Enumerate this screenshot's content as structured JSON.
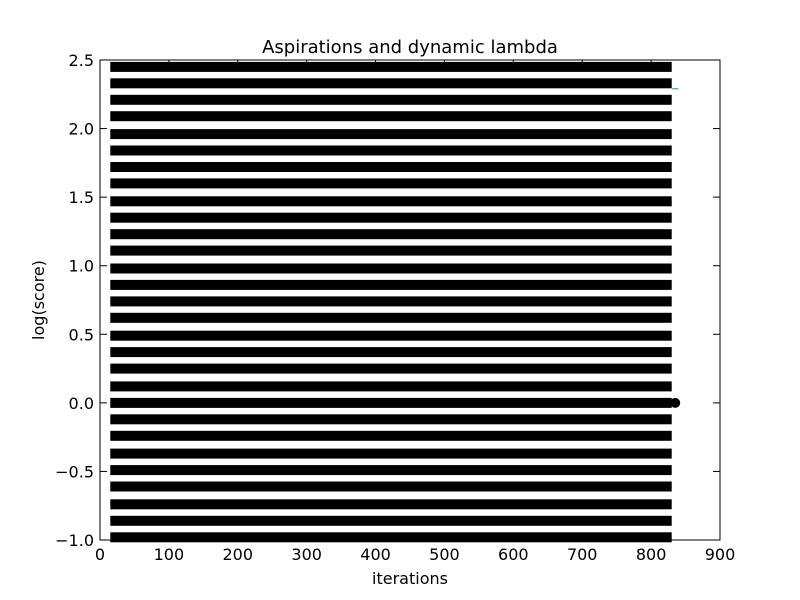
{
  "chart_data": {
    "type": "scatter",
    "title": "Aspirations and dynamic lambda",
    "xlabel": "iterations",
    "ylabel": "log(score)",
    "xlim": [
      0,
      900
    ],
    "ylim": [
      -1.0,
      2.5
    ],
    "xticks": [
      0,
      100,
      200,
      300,
      400,
      500,
      600,
      700,
      800,
      900
    ],
    "xtick_labels": [
      "0",
      "100",
      "200",
      "300",
      "400",
      "500",
      "600",
      "700",
      "800",
      "900"
    ],
    "yticks": [
      -1.0,
      -0.5,
      0.0,
      0.5,
      1.0,
      1.5,
      2.0,
      2.5
    ],
    "ytick_labels": [
      "−1.0",
      "−0.5",
      "0.0",
      "0.5",
      "1.0",
      "1.5",
      "2.0",
      "2.5"
    ],
    "grid": false,
    "legend": "none",
    "series": [
      {
        "x_range": [
          15,
          830
        ],
        "y": [
          -0.98,
          -0.86,
          -0.74,
          -0.61,
          -0.49,
          -0.37,
          -0.24,
          -0.12,
          0.0,
          0.12,
          0.25,
          0.37,
          0.49,
          0.62,
          0.74,
          0.86,
          0.98,
          1.11,
          1.23,
          1.35,
          1.47,
          1.6,
          1.72,
          1.84,
          1.96,
          2.09,
          2.21,
          2.33,
          2.45
        ],
        "color": "#000000",
        "marker": "point"
      }
    ],
    "annotations": [
      {
        "x": 835,
        "y": 0.0,
        "marker": "filled-circle",
        "color": "#000000"
      },
      {
        "x": 835,
        "y": 2.29,
        "marker": "tick",
        "color": "#2e8b57"
      }
    ]
  }
}
